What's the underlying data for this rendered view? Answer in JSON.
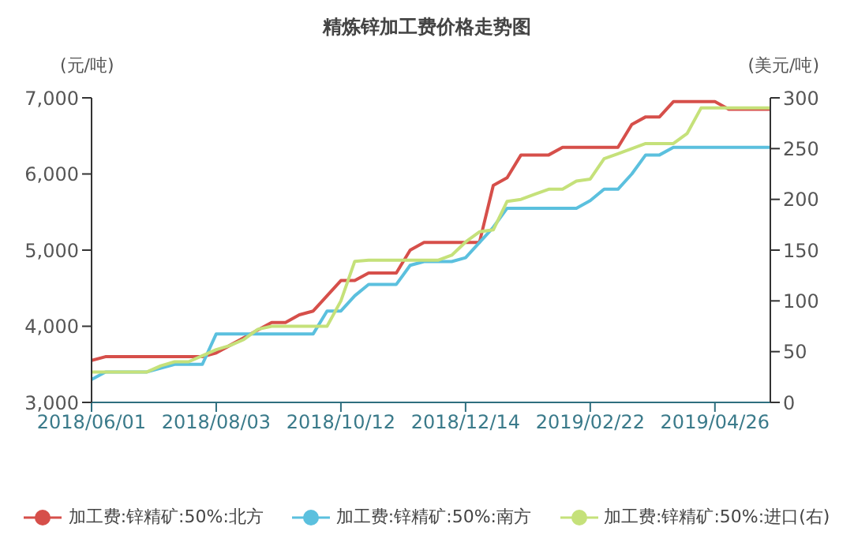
{
  "chart_data": {
    "type": "line",
    "title": "精炼锌加工费价格走势图",
    "ylabel": "(元/吨)",
    "y2label": "(美元/吨)",
    "categories": [
      "2018/06/01",
      null,
      null,
      null,
      null,
      null,
      null,
      null,
      null,
      "2018/08/03",
      null,
      null,
      null,
      null,
      null,
      null,
      null,
      null,
      "2018/10/12",
      null,
      null,
      null,
      null,
      null,
      null,
      null,
      null,
      "2018/12/14",
      null,
      null,
      null,
      null,
      null,
      null,
      null,
      null,
      "2019/02/22",
      null,
      null,
      null,
      null,
      null,
      null,
      null,
      null,
      "2019/04/26",
      null,
      null,
      null,
      null
    ],
    "series": [
      {
        "name": "加工费:锌精矿:50%:北方",
        "color": "#d64f4a",
        "values": [
          3550,
          3600,
          3600,
          3600,
          3600,
          3600,
          3600,
          3600,
          3600,
          3650,
          3750,
          3850,
          3950,
          4050,
          4050,
          4150,
          4200,
          4400,
          4600,
          4600,
          4700,
          4700,
          4700,
          5000,
          5100,
          5100,
          5100,
          5100,
          5100,
          5850,
          5950,
          6250,
          6250,
          6250,
          6350,
          6350,
          6350,
          6350,
          6350,
          6650,
          6750,
          6750,
          6950,
          6950,
          6950,
          6950,
          6850,
          6850,
          6850,
          6850
        ]
      },
      {
        "name": "加工费:锌精矿:50%:南方",
        "color": "#5bc0de",
        "values": [
          3300,
          3400,
          3400,
          3400,
          3400,
          3450,
          3500,
          3500,
          3500,
          3900,
          3900,
          3900,
          3900,
          3900,
          3900,
          3900,
          3900,
          4200,
          4200,
          4400,
          4550,
          4550,
          4550,
          4800,
          4850,
          4850,
          4850,
          4900,
          5100,
          5300,
          5550,
          5550,
          5550,
          5550,
          5550,
          5550,
          5650,
          5800,
          5800,
          6000,
          6250,
          6250,
          6350,
          6350,
          6350,
          6350,
          6350,
          6350,
          6350,
          6350
        ]
      },
      {
        "name": "加工费:锌精矿:50%:进口(右)",
        "color": "#c5e17a",
        "axis": "y2",
        "values": [
          30,
          30,
          30,
          30,
          30,
          36,
          40,
          40,
          46,
          52,
          56,
          62,
          72,
          75,
          75,
          75,
          75,
          75,
          100,
          139,
          140,
          140,
          140,
          140,
          140,
          140,
          145,
          158,
          168,
          170,
          198,
          200,
          205,
          210,
          210,
          218,
          220,
          240,
          245,
          250,
          255,
          255,
          255,
          265,
          290,
          290,
          290,
          290,
          290,
          290
        ]
      }
    ],
    "ylim": [
      3000,
      7000
    ],
    "yticks": [
      {
        "value": 3000,
        "label": "3,000"
      },
      {
        "value": 4000,
        "label": "4,000"
      },
      {
        "value": 5000,
        "label": "5,000"
      },
      {
        "value": 6000,
        "label": "6,000"
      },
      {
        "value": 7000,
        "label": "7,000"
      }
    ],
    "y2lim": [
      0,
      300
    ],
    "y2ticks": [
      0,
      50,
      100,
      150,
      200,
      250,
      300
    ],
    "grid": false,
    "legend": "bottom",
    "marker": "none",
    "line_style": "solid"
  }
}
